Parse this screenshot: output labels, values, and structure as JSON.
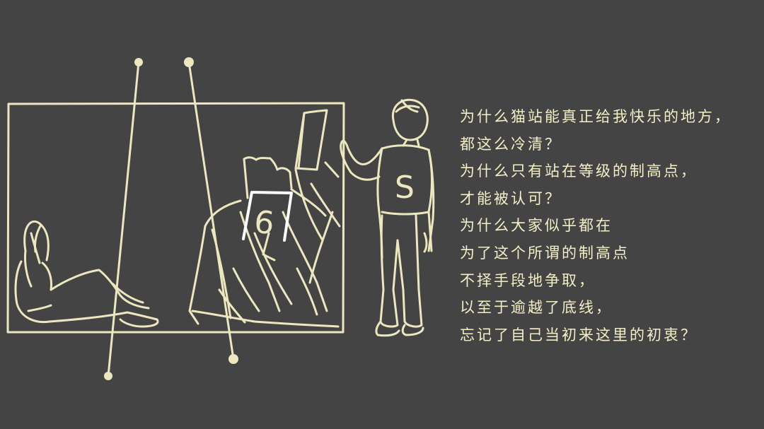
{
  "poem": {
    "lines": [
      "为什么猫站能真正给我快乐的地方，",
      "都这么冷清？",
      "为什么只有站在等级的制高点，",
      "才能被认可？",
      "为什么大家似乎都在",
      "为了这个所谓的制高点",
      "不择手段地争取，",
      "以至于逾越了底线，",
      "忘记了自己当初来这里的初衷？"
    ]
  },
  "illustration": {
    "podium_number": "6",
    "shirt_letter": "S"
  },
  "colors": {
    "background": "#444444",
    "chalk": "#ece7be",
    "text": "#f4efc6"
  }
}
